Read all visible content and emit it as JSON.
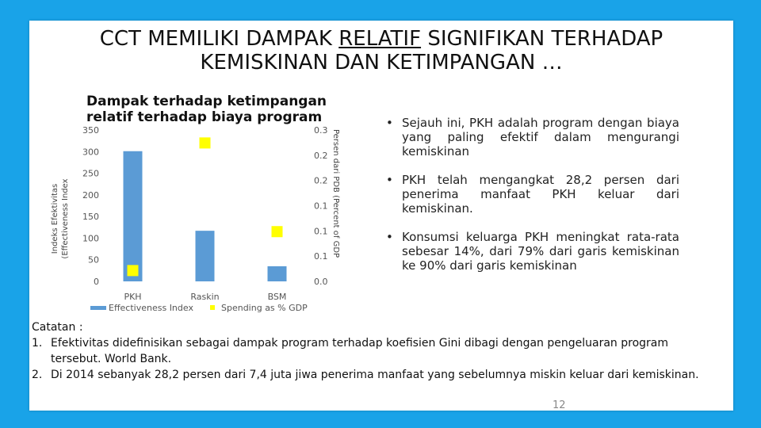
{
  "slide": {
    "title_before": "CCT MEMILIKI DAMPAK ",
    "title_underlined": "RELATIF",
    "title_after": " SIGNIFIKAN TERHADAP",
    "title_line2": "KEMISKINAN DAN KETIMPANGAN …",
    "page_number": "12"
  },
  "chart_data": {
    "type": "bar",
    "title": "Dampak terhadap ketimpangan relatif terhadap biaya program",
    "title_line1": "Dampak terhadap ketimpangan",
    "title_line2": "relatif terhadap biaya program",
    "categories": [
      "PKH",
      "Raskin",
      "BSM"
    ],
    "series": [
      {
        "name": "Effectiveness Index",
        "type": "bar",
        "axis": "left",
        "color": "#5b9bd5",
        "values": [
          301,
          117,
          35
        ]
      },
      {
        "name": "Spending as % GDP",
        "type": "marker",
        "axis": "right",
        "color": "#ffff00",
        "values": [
          0.025,
          0.32,
          0.115
        ]
      }
    ],
    "ylabel": "Indeks Efektivitas (Effectiveness Index",
    "ylabel_line1": "Indeks Efektivitas",
    "ylabel_line2": "(Effectiveness Index",
    "y2label": "Persen dari PDB (Percent of GDP",
    "ylim": [
      0,
      350
    ],
    "yticks": [
      0,
      50,
      100,
      150,
      200,
      250,
      300,
      350
    ],
    "y2lim": [
      0,
      0.35
    ],
    "y2ticks": [
      "0.0",
      "0.1",
      "0.1",
      "0.1",
      "0.2",
      "0.2",
      "0.3"
    ],
    "legend_position": "bottom",
    "grid": false
  },
  "bullets": [
    "Sejauh ini, PKH adalah program dengan biaya yang paling efektif dalam mengurangi kemiskinan",
    "PKH telah mengangkat 28,2 persen dari penerima manfaat PKH keluar dari kemiskinan.",
    "Konsumsi keluarga PKH meningkat rata-rata sebesar 14%, dari 79% dari garis kemiskinan ke 90% dari garis kemiskinan"
  ],
  "notes": {
    "heading": "Catatan :",
    "items": [
      {
        "num": "1.",
        "text": "Efektivitas didefinisikan sebagai dampak program terhadap koefisien Gini dibagi dengan pengeluaran program tersebut. World Bank."
      },
      {
        "num": "2.",
        "text": "Di 2014 sebanyak 28,2 persen dari 7,4 juta jiwa penerima manfaat yang sebelumnya miskin keluar dari kemiskinan."
      }
    ]
  }
}
